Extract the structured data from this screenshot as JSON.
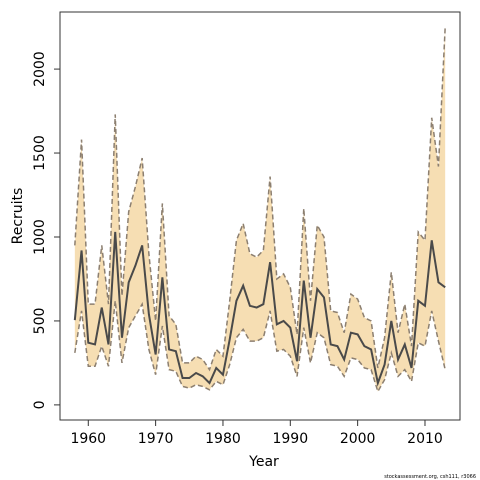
{
  "chart_data": {
    "type": "line",
    "xlabel": "Year",
    "ylabel": "Recruits",
    "note": "stockassessment.org, csh111, r3066",
    "x": [
      1958,
      1959,
      1960,
      1961,
      1962,
      1963,
      1964,
      1965,
      1966,
      1967,
      1968,
      1969,
      1970,
      1971,
      1972,
      1973,
      1974,
      1975,
      1976,
      1977,
      1978,
      1979,
      1980,
      1981,
      1982,
      1983,
      1984,
      1985,
      1986,
      1987,
      1988,
      1989,
      1990,
      1991,
      1992,
      1993,
      1994,
      1995,
      1996,
      1997,
      1998,
      1999,
      2000,
      2001,
      2002,
      2003,
      2004,
      2005,
      2006,
      2007,
      2008,
      2009,
      2010,
      2011,
      2012,
      2013
    ],
    "values": [
      505,
      920,
      370,
      360,
      580,
      360,
      1030,
      400,
      730,
      830,
      950,
      540,
      300,
      760,
      330,
      320,
      160,
      160,
      190,
      170,
      130,
      220,
      180,
      390,
      620,
      710,
      590,
      580,
      600,
      850,
      480,
      500,
      460,
      260,
      740,
      400,
      690,
      640,
      360,
      350,
      270,
      430,
      420,
      350,
      330,
      130,
      240,
      500,
      270,
      360,
      220,
      620,
      590,
      980,
      730,
      700
    ],
    "upper": [
      950,
      1580,
      600,
      600,
      950,
      600,
      1730,
      650,
      1150,
      1300,
      1470,
      900,
      500,
      1200,
      530,
      480,
      250,
      250,
      290,
      270,
      210,
      330,
      290,
      620,
      980,
      1080,
      900,
      880,
      920,
      1360,
      750,
      780,
      700,
      420,
      1170,
      620,
      1070,
      1000,
      560,
      550,
      430,
      660,
      630,
      520,
      500,
      220,
      400,
      790,
      430,
      600,
      350,
      1030,
      980,
      1710,
      1420,
      2250
    ],
    "lower": [
      310,
      560,
      230,
      230,
      350,
      230,
      620,
      250,
      460,
      530,
      600,
      330,
      180,
      470,
      210,
      200,
      110,
      100,
      120,
      110,
      90,
      140,
      120,
      240,
      400,
      450,
      380,
      380,
      400,
      560,
      320,
      330,
      290,
      170,
      460,
      250,
      430,
      400,
      240,
      230,
      170,
      280,
      270,
      220,
      210,
      80,
      150,
      310,
      170,
      210,
      140,
      370,
      350,
      560,
      380,
      210
    ],
    "line_color": "#4a4a4a",
    "band_color": "#f6deb3",
    "bound_color": "#8c7f70",
    "xlim": [
      1955.8,
      2015.2
    ],
    "ylim": [
      -90,
      2340
    ],
    "xticks": [
      1960,
      1970,
      1980,
      1990,
      2000,
      2010
    ],
    "yticks": [
      0,
      500,
      1000,
      1500,
      2000
    ]
  }
}
